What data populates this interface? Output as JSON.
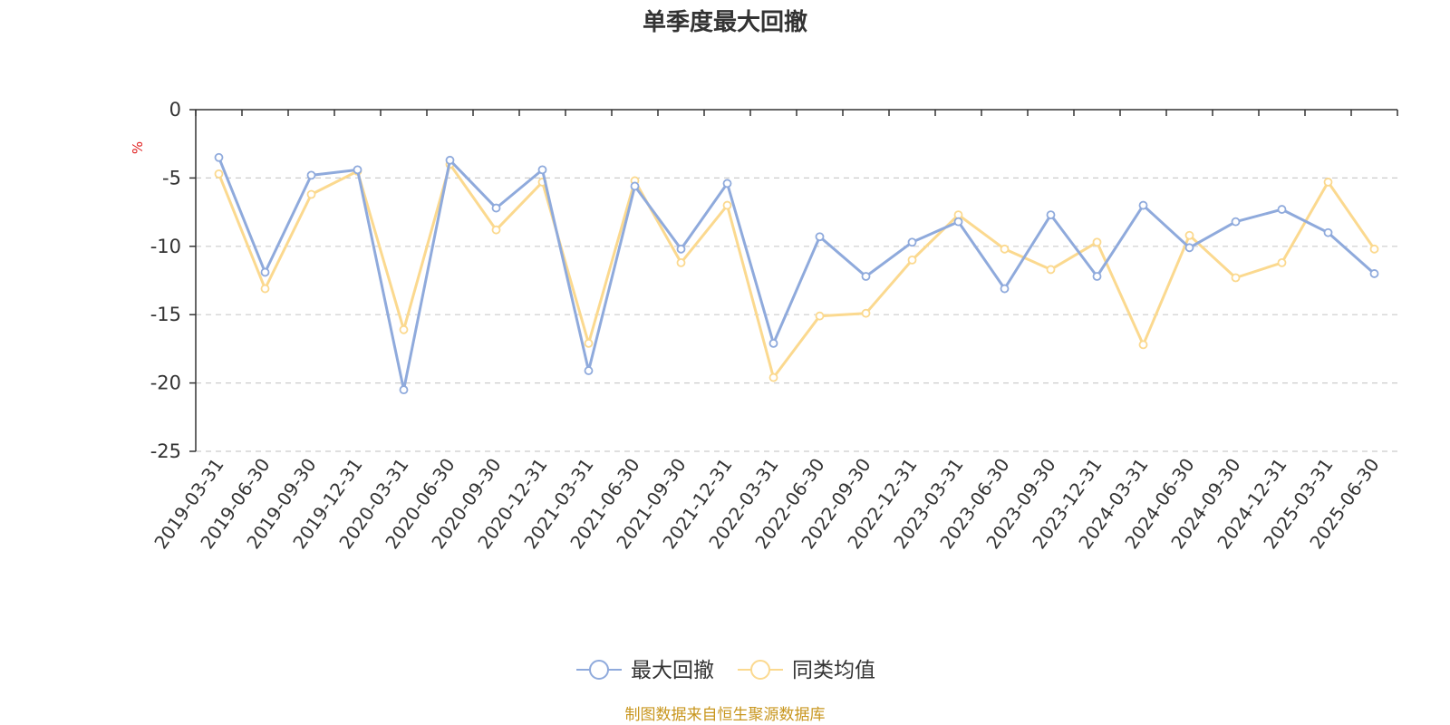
{
  "chart_data": {
    "type": "line",
    "title": "单季度最大回撤",
    "ylabel": "%",
    "ylim": [
      -25,
      0
    ],
    "yticks": [
      0,
      -5,
      -10,
      -15,
      -20,
      -25
    ],
    "grid": true,
    "legend_position": "bottom",
    "categories": [
      "2019-03-31",
      "2019-06-30",
      "2019-09-30",
      "2019-12-31",
      "2020-03-31",
      "2020-06-30",
      "2020-09-30",
      "2020-12-31",
      "2021-03-31",
      "2021-06-30",
      "2021-09-30",
      "2021-12-31",
      "2022-03-31",
      "2022-06-30",
      "2022-09-30",
      "2022-12-31",
      "2023-03-31",
      "2023-06-30",
      "2023-09-30",
      "2023-12-31",
      "2024-03-31",
      "2024-06-30",
      "2024-09-30",
      "2024-12-31",
      "2025-03-31",
      "2025-06-30"
    ],
    "series": [
      {
        "name": "最大回撤",
        "color": "#8faadc",
        "values": [
          -3.5,
          -11.9,
          -4.8,
          -4.4,
          -20.5,
          -3.7,
          -7.2,
          -4.4,
          -19.1,
          -5.6,
          -10.2,
          -5.4,
          -17.1,
          -9.3,
          -12.2,
          -9.7,
          -8.2,
          -13.1,
          -7.7,
          -12.2,
          -7.0,
          -10.1,
          -8.2,
          -7.3,
          -9.0,
          -12.0
        ]
      },
      {
        "name": "同类均值",
        "color": "#fbd98f",
        "values": [
          -4.7,
          -13.1,
          -6.2,
          -4.5,
          -16.1,
          -4.0,
          -8.8,
          -5.3,
          -17.1,
          -5.2,
          -11.2,
          -7.0,
          -19.6,
          -15.1,
          -14.9,
          -11.0,
          -7.7,
          -10.2,
          -11.7,
          -9.7,
          -17.2,
          -9.2,
          -12.3,
          -11.2,
          -5.3,
          -10.2
        ]
      }
    ]
  },
  "footer": {
    "source": "制图数据来自恒生聚源数据库",
    "source_color": "#c8961e"
  }
}
